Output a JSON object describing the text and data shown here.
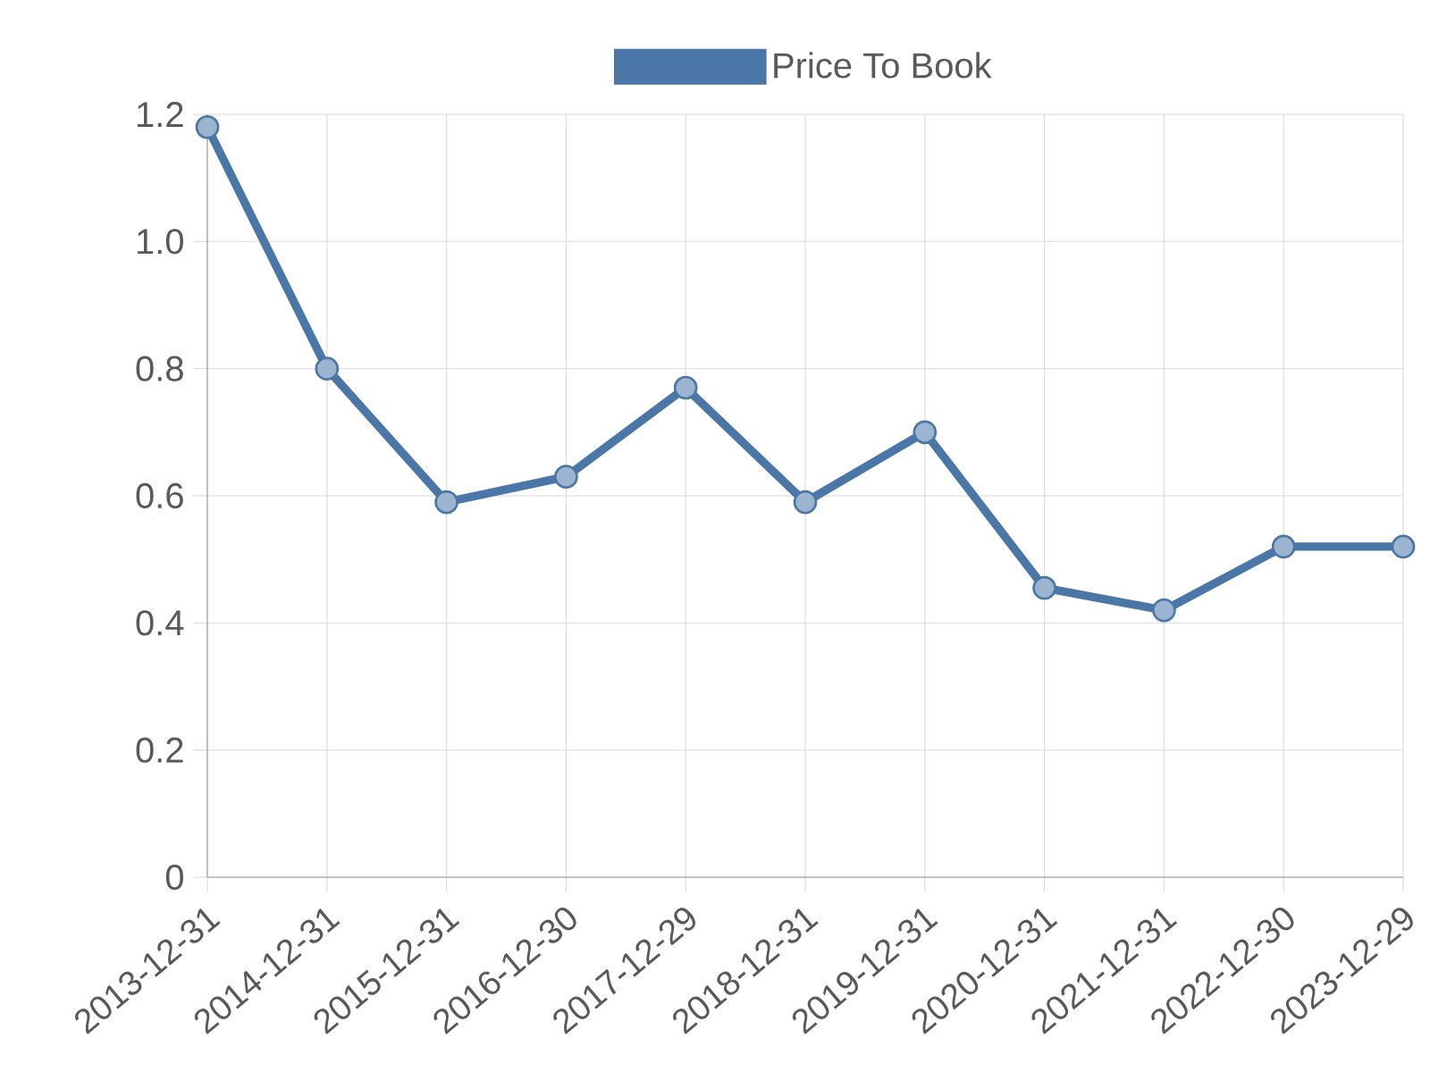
{
  "chart_data": {
    "type": "line",
    "categories": [
      "2013-12-31",
      "2014-12-31",
      "2015-12-31",
      "2016-12-30",
      "2017-12-29",
      "2018-12-31",
      "2019-12-31",
      "2020-12-31",
      "2021-12-31",
      "2022-12-30",
      "2023-12-29"
    ],
    "series": [
      {
        "name": "Price To Book",
        "color": "#4a76a8",
        "values": [
          1.18,
          0.8,
          0.59,
          0.63,
          0.77,
          0.59,
          0.7,
          0.455,
          0.42,
          0.52,
          0.52
        ]
      }
    ],
    "ylim": [
      0,
      1.2
    ],
    "yticks": [
      0,
      0.2,
      0.4,
      0.6,
      0.8,
      {
        "value": 1,
        "label": "1.0"
      },
      1.2
    ],
    "grid": true,
    "legend": "top",
    "marker": "circle",
    "line_style": "solid"
  }
}
